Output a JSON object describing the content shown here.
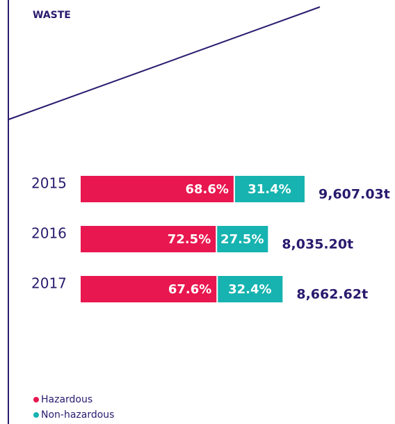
{
  "chart_data": {
    "type": "bar",
    "orientation": "horizontal",
    "stacked": true,
    "title": "WASTE",
    "categories": [
      "2015",
      "2016",
      "2017"
    ],
    "series": [
      {
        "name": "Hazardous",
        "color": "#e8174f",
        "values": [
          68.6,
          72.5,
          67.6
        ],
        "value_labels": [
          "68.6%",
          "72.5%",
          "67.6%"
        ]
      },
      {
        "name": "Non-hazardous",
        "color": "#16b3b0",
        "values": [
          31.4,
          27.5,
          32.4
        ],
        "value_labels": [
          "31.4%",
          "27.5%",
          "32.4%"
        ]
      }
    ],
    "totals": {
      "values": [
        9607.03,
        8035.2,
        8662.62
      ],
      "value_labels": [
        "9,607.03t",
        "8,035.20t",
        "8,662.62t"
      ]
    },
    "legend": "bottom-left"
  }
}
